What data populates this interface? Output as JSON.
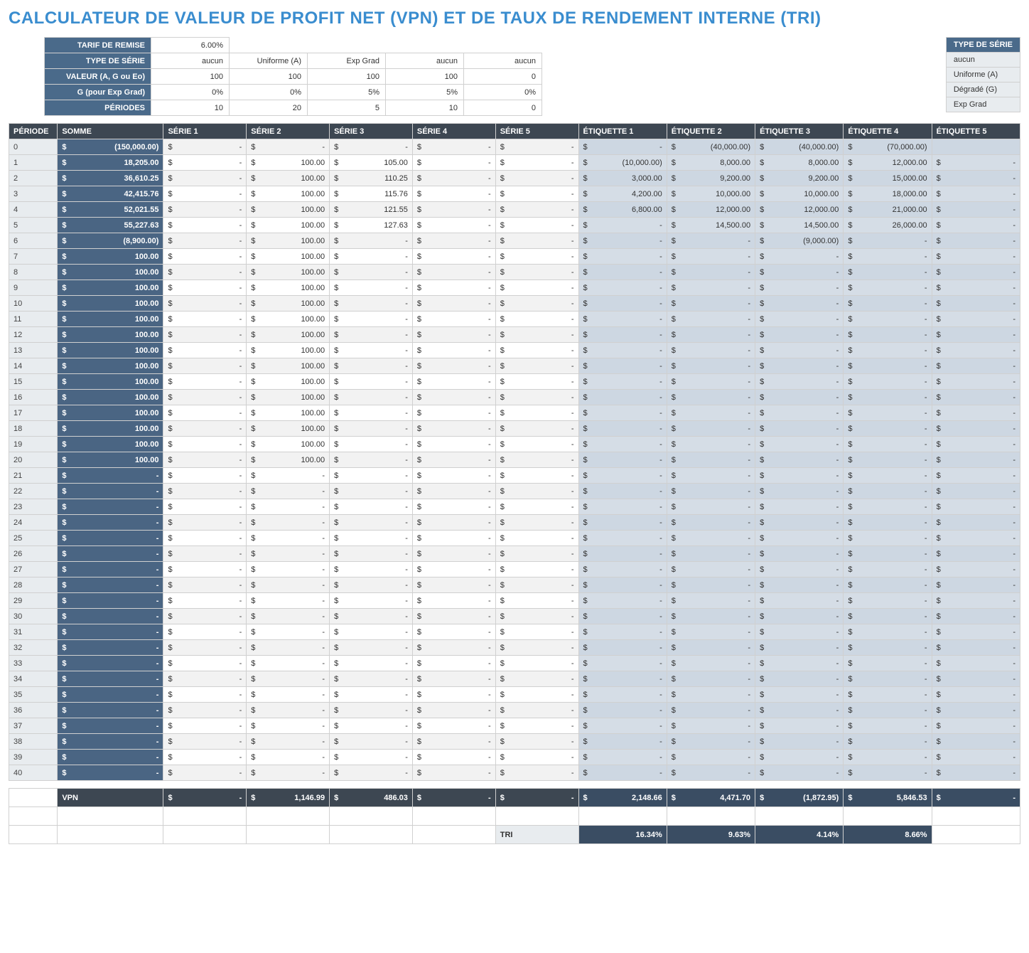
{
  "title": "CALCULATEUR DE VALEUR DE PROFIT NET (VPN) ET DE TAUX DE RENDEMENT INTERNE (TRI)",
  "colors": {
    "title": "#3a8dcf",
    "header_dark": "#3d4752",
    "header_blue": "#4a6a8a",
    "somme_bg": "#4a6583",
    "etiq_bg": "#d5dde6",
    "etiq_bg_alt": "#cdd7e2",
    "serie_bg_alt": "#f2f2f2",
    "period_bg": "#e8ecef",
    "footer_etiq": "#3a4d63",
    "border": "#d0d0d0"
  },
  "params": {
    "rows": [
      {
        "label": "TARIF DE REMISE",
        "vals": [
          "6.00%"
        ]
      },
      {
        "label": "TYPE DE SÉRIE",
        "vals": [
          "aucun",
          "Uniforme (A)",
          "Exp Grad",
          "aucun",
          "aucun"
        ]
      },
      {
        "label": "VALEUR (A, G ou Eo)",
        "vals": [
          "100",
          "100",
          "100",
          "100",
          "0"
        ]
      },
      {
        "label": "G (pour Exp Grad)",
        "vals": [
          "0%",
          "0%",
          "5%",
          "5%",
          "0%"
        ]
      },
      {
        "label": "PÉRIODES",
        "vals": [
          "10",
          "20",
          "5",
          "10",
          "0"
        ]
      }
    ]
  },
  "legend": {
    "header": "TYPE DE SÉRIE",
    "items": [
      "aucun",
      "Uniforme (A)",
      "Dégradé (G)",
      "Exp Grad"
    ]
  },
  "table": {
    "headers": [
      "PÉRIODE",
      "SOMME",
      "SÉRIE 1",
      "SÉRIE 2",
      "SÉRIE 3",
      "SÉRIE 4",
      "SÉRIE 5",
      "ÉTIQUETTE 1",
      "ÉTIQUETTE 2",
      "ÉTIQUETTE 3",
      "ÉTIQUETTE 4",
      "ÉTIQUETTE 5"
    ],
    "rows": [
      {
        "p": "0",
        "somme": "(150,000.00)",
        "s": [
          "-",
          "-",
          "-",
          "-",
          "-"
        ],
        "e": [
          "-",
          "(40,000.00)",
          "(40,000.00)",
          "(70,000.00)",
          ""
        ]
      },
      {
        "p": "1",
        "somme": "18,205.00",
        "s": [
          "-",
          "100.00",
          "105.00",
          "-",
          "-"
        ],
        "e": [
          "(10,000.00)",
          "8,000.00",
          "8,000.00",
          "12,000.00",
          "-"
        ]
      },
      {
        "p": "2",
        "somme": "36,610.25",
        "s": [
          "-",
          "100.00",
          "110.25",
          "-",
          "-"
        ],
        "e": [
          "3,000.00",
          "9,200.00",
          "9,200.00",
          "15,000.00",
          "-"
        ]
      },
      {
        "p": "3",
        "somme": "42,415.76",
        "s": [
          "-",
          "100.00",
          "115.76",
          "-",
          "-"
        ],
        "e": [
          "4,200.00",
          "10,000.00",
          "10,000.00",
          "18,000.00",
          "-"
        ]
      },
      {
        "p": "4",
        "somme": "52,021.55",
        "s": [
          "-",
          "100.00",
          "121.55",
          "-",
          "-"
        ],
        "e": [
          "6,800.00",
          "12,000.00",
          "12,000.00",
          "21,000.00",
          "-"
        ]
      },
      {
        "p": "5",
        "somme": "55,227.63",
        "s": [
          "-",
          "100.00",
          "127.63",
          "-",
          "-"
        ],
        "e": [
          "-",
          "14,500.00",
          "14,500.00",
          "26,000.00",
          "-"
        ]
      },
      {
        "p": "6",
        "somme": "(8,900.00)",
        "s": [
          "-",
          "100.00",
          "-",
          "-",
          "-"
        ],
        "e": [
          "-",
          "-",
          "(9,000.00)",
          "-",
          "-"
        ]
      },
      {
        "p": "7",
        "somme": "100.00",
        "s": [
          "-",
          "100.00",
          "-",
          "-",
          "-"
        ],
        "e": [
          "-",
          "-",
          "-",
          "-",
          "-"
        ]
      },
      {
        "p": "8",
        "somme": "100.00",
        "s": [
          "-",
          "100.00",
          "-",
          "-",
          "-"
        ],
        "e": [
          "-",
          "-",
          "-",
          "-",
          "-"
        ]
      },
      {
        "p": "9",
        "somme": "100.00",
        "s": [
          "-",
          "100.00",
          "-",
          "-",
          "-"
        ],
        "e": [
          "-",
          "-",
          "-",
          "-",
          "-"
        ]
      },
      {
        "p": "10",
        "somme": "100.00",
        "s": [
          "-",
          "100.00",
          "-",
          "-",
          "-"
        ],
        "e": [
          "-",
          "-",
          "-",
          "-",
          "-"
        ]
      },
      {
        "p": "11",
        "somme": "100.00",
        "s": [
          "-",
          "100.00",
          "-",
          "-",
          "-"
        ],
        "e": [
          "-",
          "-",
          "-",
          "-",
          "-"
        ]
      },
      {
        "p": "12",
        "somme": "100.00",
        "s": [
          "-",
          "100.00",
          "-",
          "-",
          "-"
        ],
        "e": [
          "-",
          "-",
          "-",
          "-",
          "-"
        ]
      },
      {
        "p": "13",
        "somme": "100.00",
        "s": [
          "-",
          "100.00",
          "-",
          "-",
          "-"
        ],
        "e": [
          "-",
          "-",
          "-",
          "-",
          "-"
        ]
      },
      {
        "p": "14",
        "somme": "100.00",
        "s": [
          "-",
          "100.00",
          "-",
          "-",
          "-"
        ],
        "e": [
          "-",
          "-",
          "-",
          "-",
          "-"
        ]
      },
      {
        "p": "15",
        "somme": "100.00",
        "s": [
          "-",
          "100.00",
          "-",
          "-",
          "-"
        ],
        "e": [
          "-",
          "-",
          "-",
          "-",
          "-"
        ]
      },
      {
        "p": "16",
        "somme": "100.00",
        "s": [
          "-",
          "100.00",
          "-",
          "-",
          "-"
        ],
        "e": [
          "-",
          "-",
          "-",
          "-",
          "-"
        ]
      },
      {
        "p": "17",
        "somme": "100.00",
        "s": [
          "-",
          "100.00",
          "-",
          "-",
          "-"
        ],
        "e": [
          "-",
          "-",
          "-",
          "-",
          "-"
        ]
      },
      {
        "p": "18",
        "somme": "100.00",
        "s": [
          "-",
          "100.00",
          "-",
          "-",
          "-"
        ],
        "e": [
          "-",
          "-",
          "-",
          "-",
          "-"
        ]
      },
      {
        "p": "19",
        "somme": "100.00",
        "s": [
          "-",
          "100.00",
          "-",
          "-",
          "-"
        ],
        "e": [
          "-",
          "-",
          "-",
          "-",
          "-"
        ]
      },
      {
        "p": "20",
        "somme": "100.00",
        "s": [
          "-",
          "100.00",
          "-",
          "-",
          "-"
        ],
        "e": [
          "-",
          "-",
          "-",
          "-",
          "-"
        ]
      },
      {
        "p": "21",
        "somme": "-",
        "s": [
          "-",
          "-",
          "-",
          "-",
          "-"
        ],
        "e": [
          "-",
          "-",
          "-",
          "-",
          "-"
        ]
      },
      {
        "p": "22",
        "somme": "-",
        "s": [
          "-",
          "-",
          "-",
          "-",
          "-"
        ],
        "e": [
          "-",
          "-",
          "-",
          "-",
          "-"
        ]
      },
      {
        "p": "23",
        "somme": "-",
        "s": [
          "-",
          "-",
          "-",
          "-",
          "-"
        ],
        "e": [
          "-",
          "-",
          "-",
          "-",
          "-"
        ]
      },
      {
        "p": "24",
        "somme": "-",
        "s": [
          "-",
          "-",
          "-",
          "-",
          "-"
        ],
        "e": [
          "-",
          "-",
          "-",
          "-",
          "-"
        ]
      },
      {
        "p": "25",
        "somme": "-",
        "s": [
          "-",
          "-",
          "-",
          "-",
          "-"
        ],
        "e": [
          "-",
          "-",
          "-",
          "-",
          "-"
        ]
      },
      {
        "p": "26",
        "somme": "-",
        "s": [
          "-",
          "-",
          "-",
          "-",
          "-"
        ],
        "e": [
          "-",
          "-",
          "-",
          "-",
          "-"
        ]
      },
      {
        "p": "27",
        "somme": "-",
        "s": [
          "-",
          "-",
          "-",
          "-",
          "-"
        ],
        "e": [
          "-",
          "-",
          "-",
          "-",
          "-"
        ]
      },
      {
        "p": "28",
        "somme": "-",
        "s": [
          "-",
          "-",
          "-",
          "-",
          "-"
        ],
        "e": [
          "-",
          "-",
          "-",
          "-",
          "-"
        ]
      },
      {
        "p": "29",
        "somme": "-",
        "s": [
          "-",
          "-",
          "-",
          "-",
          "-"
        ],
        "e": [
          "-",
          "-",
          "-",
          "-",
          "-"
        ]
      },
      {
        "p": "30",
        "somme": "-",
        "s": [
          "-",
          "-",
          "-",
          "-",
          "-"
        ],
        "e": [
          "-",
          "-",
          "-",
          "-",
          "-"
        ]
      },
      {
        "p": "31",
        "somme": "-",
        "s": [
          "-",
          "-",
          "-",
          "-",
          "-"
        ],
        "e": [
          "-",
          "-",
          "-",
          "-",
          "-"
        ]
      },
      {
        "p": "32",
        "somme": "-",
        "s": [
          "-",
          "-",
          "-",
          "-",
          "-"
        ],
        "e": [
          "-",
          "-",
          "-",
          "-",
          "-"
        ]
      },
      {
        "p": "33",
        "somme": "-",
        "s": [
          "-",
          "-",
          "-",
          "-",
          "-"
        ],
        "e": [
          "-",
          "-",
          "-",
          "-",
          "-"
        ]
      },
      {
        "p": "34",
        "somme": "-",
        "s": [
          "-",
          "-",
          "-",
          "-",
          "-"
        ],
        "e": [
          "-",
          "-",
          "-",
          "-",
          "-"
        ]
      },
      {
        "p": "35",
        "somme": "-",
        "s": [
          "-",
          "-",
          "-",
          "-",
          "-"
        ],
        "e": [
          "-",
          "-",
          "-",
          "-",
          "-"
        ]
      },
      {
        "p": "36",
        "somme": "-",
        "s": [
          "-",
          "-",
          "-",
          "-",
          "-"
        ],
        "e": [
          "-",
          "-",
          "-",
          "-",
          "-"
        ]
      },
      {
        "p": "37",
        "somme": "-",
        "s": [
          "-",
          "-",
          "-",
          "-",
          "-"
        ],
        "e": [
          "-",
          "-",
          "-",
          "-",
          "-"
        ]
      },
      {
        "p": "38",
        "somme": "-",
        "s": [
          "-",
          "-",
          "-",
          "-",
          "-"
        ],
        "e": [
          "-",
          "-",
          "-",
          "-",
          "-"
        ]
      },
      {
        "p": "39",
        "somme": "-",
        "s": [
          "-",
          "-",
          "-",
          "-",
          "-"
        ],
        "e": [
          "-",
          "-",
          "-",
          "-",
          "-"
        ]
      },
      {
        "p": "40",
        "somme": "-",
        "s": [
          "-",
          "-",
          "-",
          "-",
          "-"
        ],
        "e": [
          "-",
          "-",
          "-",
          "-",
          "-"
        ]
      }
    ]
  },
  "footer": {
    "vpn_label": "VPN",
    "vpn_series": [
      "-",
      "1,146.99",
      "486.03",
      "-",
      "-"
    ],
    "vpn_etiq": [
      "2,148.66",
      "4,471.70",
      "(1,872.95)",
      "5,846.53",
      "-"
    ],
    "tri_label": "TRI",
    "tri_vals": [
      "16.34%",
      "9.63%",
      "4.14%",
      "8.66%",
      ""
    ]
  },
  "currency": "$"
}
